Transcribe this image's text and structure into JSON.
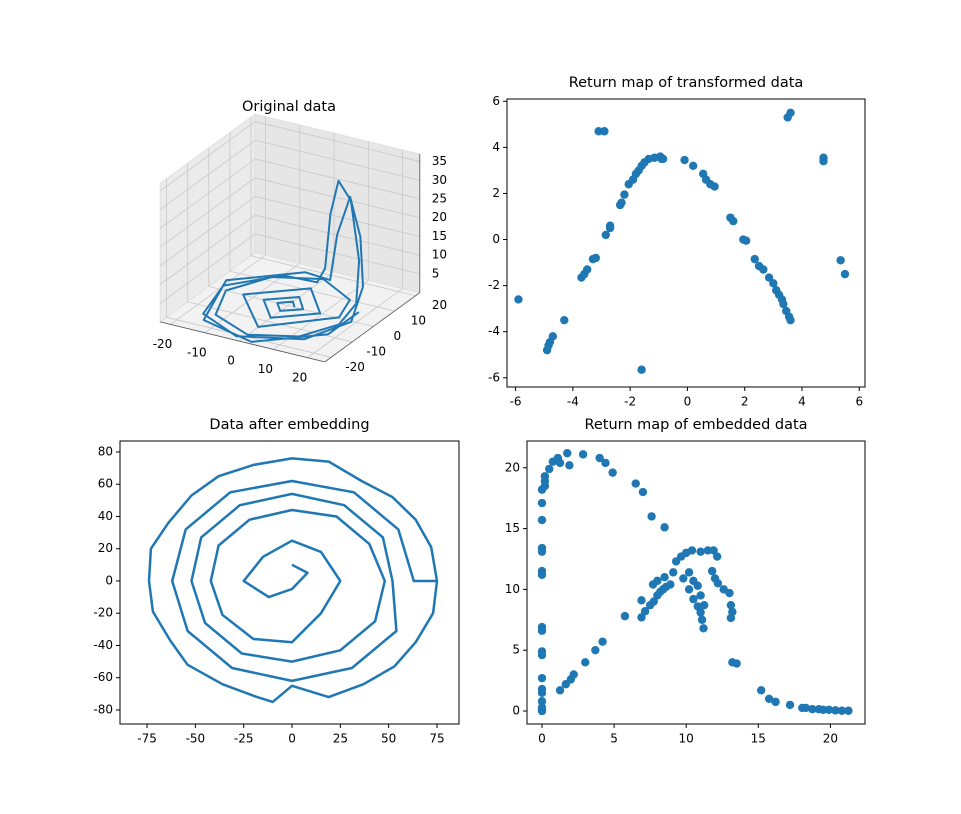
{
  "chart_data": [
    {
      "type": "line3d",
      "title": "Original data",
      "color": "#1f77b4",
      "x": [
        2,
        0,
        -3,
        0,
        4.5,
        0,
        -7,
        0,
        9.5,
        0,
        -13,
        0,
        15,
        12,
        0,
        -12,
        -18,
        -13,
        0,
        12,
        18,
        20,
        19,
        16,
        13,
        10,
        6,
        0,
        -10,
        -20,
        -16,
        -2,
        14,
        21,
        22,
        20,
        17,
        12,
        5,
        -6,
        -21,
        -14,
        3,
        18,
        22
      ],
      "y": [
        0,
        2.5,
        0,
        -3.5,
        0,
        5.5,
        0,
        -8,
        0,
        11,
        0,
        -14,
        0,
        10,
        17,
        12,
        0,
        -13,
        -19,
        -14,
        -5,
        0,
        3,
        4,
        3,
        4,
        8,
        14,
        14,
        2,
        -14,
        -21,
        -15,
        -4,
        0,
        2,
        2,
        4,
        12,
        18,
        5,
        -17,
        -22,
        -10,
        -2
      ],
      "z": [
        0.05,
        0.05,
        0.05,
        0.05,
        0.05,
        0.05,
        0.05,
        0.05,
        0.05,
        0.1,
        0.1,
        0.1,
        0.2,
        0.1,
        0.1,
        0.05,
        0.05,
        0.05,
        0.05,
        0.2,
        1,
        5,
        15,
        30,
        35,
        25,
        8,
        0.5,
        0.1,
        0.05,
        0.05,
        0.05,
        0.3,
        2,
        10,
        22,
        32,
        20,
        3,
        0.2,
        0.05,
        0.05,
        0.05,
        0.5,
        4
      ],
      "xlim": [
        -23,
        25
      ],
      "ylim": [
        -23,
        22
      ],
      "zlim": [
        0,
        37
      ],
      "xticks": [
        -20,
        -10,
        0,
        10,
        20
      ],
      "yticks": [
        -20,
        -10,
        0,
        10,
        20
      ],
      "zticks": [
        5,
        10,
        15,
        20,
        25,
        30,
        35
      ]
    },
    {
      "type": "scatter",
      "title": "Return map of transformed data",
      "color": "#1f77b4",
      "x": [
        -5.9,
        -4.9,
        -4.85,
        -4.8,
        -4.7,
        -4.3,
        -3.7,
        -3.6,
        -3.5,
        -3.3,
        -3.2,
        -3.1,
        -2.9,
        -2.85,
        -2.7,
        -2.7,
        -2.35,
        -2.3,
        -2.2,
        -2.05,
        -1.9,
        -1.8,
        -1.7,
        -1.6,
        -1.5,
        -1.6,
        -1.35,
        -1.15,
        -0.9,
        -0.95,
        -0.85,
        -0.1,
        0.2,
        0.55,
        0.65,
        0.8,
        0.95,
        1.5,
        1.6,
        1.95,
        2.05,
        2.35,
        2.5,
        2.65,
        2.85,
        3.0,
        3.1,
        3.2,
        3.3,
        3.35,
        3.45,
        3.55,
        3.6,
        3.6,
        3.5,
        4.75,
        4.75,
        5.35,
        5.5
      ],
      "y": [
        -2.6,
        -4.8,
        -4.6,
        -4.45,
        -4.2,
        -3.5,
        -1.65,
        -1.5,
        -1.3,
        -0.85,
        -0.8,
        4.7,
        4.7,
        0.2,
        0.5,
        0.6,
        1.5,
        1.6,
        1.95,
        2.4,
        2.6,
        2.85,
        3.0,
        3.2,
        3.35,
        -5.65,
        3.5,
        3.55,
        3.5,
        3.6,
        3.5,
        3.45,
        3.2,
        2.85,
        2.6,
        2.4,
        2.3,
        0.95,
        0.8,
        0.0,
        -0.05,
        -0.85,
        -1.15,
        -1.3,
        -1.65,
        -1.9,
        -2.2,
        -2.4,
        -2.6,
        -2.8,
        -3.1,
        -3.35,
        -3.5,
        5.5,
        5.3,
        3.55,
        3.4,
        -0.9,
        -1.5
      ],
      "xlim": [
        -6.3,
        6.2
      ],
      "ylim": [
        -6.4,
        6.1
      ],
      "xticks": [
        -6,
        -4,
        -2,
        0,
        2,
        4,
        6
      ],
      "yticks": [
        -6,
        -4,
        -2,
        0,
        2,
        4,
        6
      ]
    },
    {
      "type": "line",
      "title": "Data after embedding",
      "color": "#1f77b4",
      "x": [
        75,
        72,
        64,
        52,
        36,
        19,
        0,
        -20,
        -38,
        -52,
        -64,
        -73,
        -74,
        -72,
        -63,
        -54,
        -36,
        -18,
        -10,
        0,
        19,
        37,
        53,
        64,
        73,
        75,
        63,
        55,
        32,
        0,
        -32,
        -55,
        -62,
        -54,
        -31,
        0,
        31,
        54,
        52,
        47,
        27,
        0,
        -27,
        -47,
        -52,
        -45,
        -26,
        0,
        25,
        43,
        48,
        40,
        23,
        0,
        -22,
        -38,
        -42,
        -36,
        -20,
        0,
        15,
        25,
        15,
        0,
        -15,
        -25,
        -12,
        0,
        8,
        0
      ],
      "y": [
        0,
        21,
        38,
        52,
        62,
        74,
        76,
        72,
        65,
        53,
        36,
        20,
        0,
        -19,
        -37,
        -52,
        -64,
        -72,
        -75,
        -65,
        -72,
        -64,
        -53,
        -38,
        -20,
        0,
        0,
        32,
        55,
        62,
        55,
        32,
        0,
        -31,
        -54,
        -62,
        -54,
        -31,
        0,
        27,
        47,
        54,
        47,
        27,
        0,
        -26,
        -45,
        -50,
        -43,
        -25,
        0,
        23,
        40,
        44,
        38,
        22,
        0,
        -21,
        -36,
        -38,
        -20,
        0,
        18,
        25,
        15,
        0,
        -10,
        -5,
        5,
        10
      ],
      "xlim": [
        -89,
        86.4
      ],
      "ylim": [
        -88.7,
        86.8
      ],
      "xticks": [
        -75,
        -50,
        -25,
        0,
        25,
        50,
        75
      ],
      "yticks": [
        -80,
        -60,
        -40,
        -20,
        0,
        20,
        40,
        60,
        80
      ]
    },
    {
      "type": "scatter",
      "title": "Return map of embedded data",
      "color": "#1f77b4",
      "x": [
        0,
        0,
        0,
        0,
        0,
        0,
        0,
        0,
        0,
        0,
        0,
        0,
        0,
        0,
        0,
        0,
        0,
        0,
        0.2,
        0.2,
        0.2,
        0.5,
        0.75,
        1.1,
        1.25,
        1.75,
        1.9,
        2.85,
        4.0,
        4.4,
        4.9,
        6.5,
        7.0,
        7.6,
        8.5,
        1.25,
        1.65,
        2.0,
        2.2,
        3.0,
        3.7,
        4.2,
        5.75,
        6.9,
        6.9,
        7.15,
        7.5,
        7.75,
        8.0,
        8.2,
        7.7,
        8.0,
        8.5,
        8.4,
        8.6,
        8.9,
        9.1,
        9.3,
        9.65,
        10.0,
        10.4,
        11.0,
        11.5,
        11.9,
        12.15,
        11.8,
        12.0,
        12.2,
        12.6,
        13.0,
        13.1,
        13.2,
        13.1,
        9.8,
        10.2,
        10.5,
        10.8,
        11.0,
        11.1,
        11.2,
        10.2,
        10.5,
        10.8,
        11.0,
        11.25,
        13.2,
        13.5,
        15.2,
        15.75,
        16.2,
        17.2,
        18.05,
        18.3,
        18.75,
        19.2,
        19.5,
        19.9,
        20.35,
        20.8,
        21.25
      ],
      "y": [
        0,
        0.1,
        0.3,
        0.8,
        1.5,
        1.8,
        2.7,
        4.6,
        4.9,
        6.6,
        6.9,
        11.2,
        11.5,
        13.1,
        13.4,
        15.7,
        17.1,
        18.2,
        18.5,
        18.9,
        19.3,
        19.9,
        20.5,
        20.8,
        20.4,
        21.2,
        20.2,
        21.1,
        20.8,
        20.4,
        19.6,
        18.7,
        18.0,
        16.0,
        15.1,
        1.7,
        2.2,
        2.6,
        3.0,
        4.0,
        5.0,
        5.7,
        7.8,
        9.1,
        7.7,
        8.2,
        8.7,
        9.0,
        9.5,
        9.8,
        10.4,
        10.7,
        11.0,
        10.0,
        10.2,
        10.4,
        11.4,
        12.3,
        12.7,
        13.0,
        13.2,
        13.1,
        13.2,
        13.2,
        12.7,
        11.5,
        10.9,
        10.5,
        10.0,
        9.7,
        8.7,
        8.15,
        7.65,
        10.9,
        10.0,
        9.2,
        8.6,
        8.1,
        7.5,
        6.8,
        11.4,
        10.7,
        10.3,
        9.5,
        8.7,
        4.0,
        3.9,
        1.7,
        1.0,
        0.75,
        0.5,
        0.25,
        0.25,
        0.15,
        0.15,
        0.1,
        0.1,
        0.05,
        0.02,
        0.02
      ],
      "xlim": [
        -1.04,
        22.4
      ],
      "ylim": [
        -1.07,
        22.2
      ],
      "xticks": [
        0,
        5,
        10,
        15,
        20
      ],
      "yticks": [
        0,
        5,
        10,
        15,
        20
      ]
    }
  ]
}
